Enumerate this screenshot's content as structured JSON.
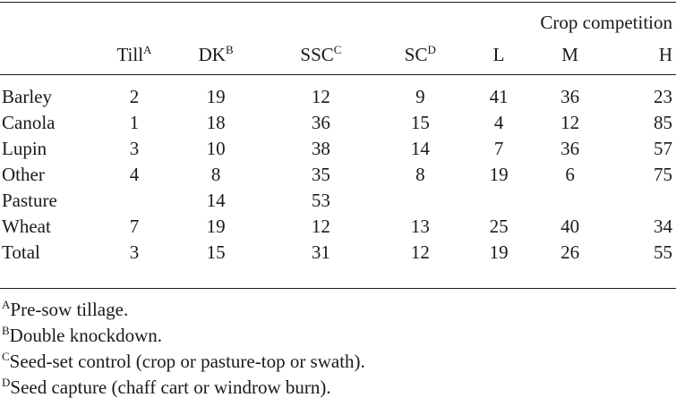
{
  "table": {
    "group_header": "Crop competition",
    "columns": [
      {
        "label": "Till",
        "sup": "A"
      },
      {
        "label": "DK",
        "sup": "B"
      },
      {
        "label": "SSC",
        "sup": "C"
      },
      {
        "label": "SC",
        "sup": "D"
      },
      {
        "label": "L",
        "sup": ""
      },
      {
        "label": "M",
        "sup": ""
      },
      {
        "label": "H",
        "sup": ""
      }
    ],
    "rows": [
      {
        "label": "Barley",
        "cells": [
          "2",
          "19",
          "12",
          "9",
          "41",
          "36",
          "23"
        ]
      },
      {
        "label": "Canola",
        "cells": [
          "1",
          "18",
          "36",
          "15",
          "4",
          "12",
          "85"
        ]
      },
      {
        "label": "Lupin",
        "cells": [
          "3",
          "10",
          "38",
          "14",
          "7",
          "36",
          "57"
        ]
      },
      {
        "label": "Other",
        "cells": [
          "4",
          "8",
          "35",
          "8",
          "19",
          "6",
          "75"
        ]
      },
      {
        "label": "Pasture",
        "cells": [
          "",
          "14",
          "53",
          "",
          "",
          "",
          ""
        ]
      },
      {
        "label": "Wheat",
        "cells": [
          "7",
          "19",
          "12",
          "13",
          "25",
          "40",
          "34"
        ]
      },
      {
        "label": "Total",
        "cells": [
          "3",
          "15",
          "31",
          "12",
          "19",
          "26",
          "55"
        ]
      }
    ]
  },
  "footnotes": [
    {
      "mark": "A",
      "text": "Pre-sow tillage."
    },
    {
      "mark": "B",
      "text": "Double knockdown."
    },
    {
      "mark": "C",
      "text": "Seed-set control (crop or pasture-top or swath)."
    },
    {
      "mark": "D",
      "text": "Seed capture (chaff cart or windrow burn)."
    }
  ]
}
